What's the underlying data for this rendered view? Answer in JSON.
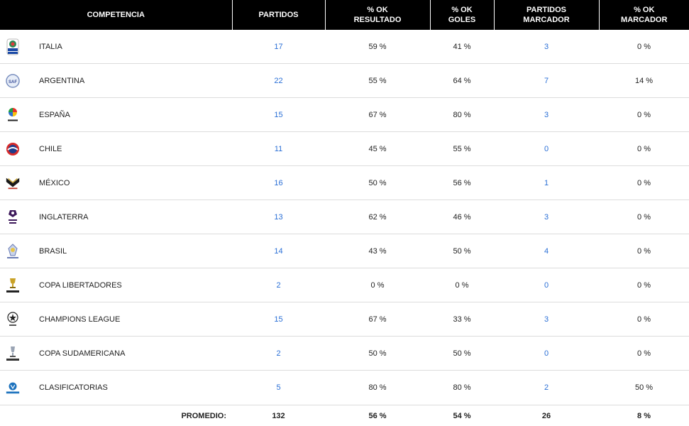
{
  "headers": {
    "competencia": "COMPETENCIA",
    "partidos": "PARTIDOS",
    "ok_resultado": [
      "% OK",
      "RESULTADO"
    ],
    "ok_goles": [
      "% OK",
      "GOLES"
    ],
    "partidos_marcador": [
      "PARTIDOS",
      "MARCADOR"
    ],
    "ok_marcador": [
      "% OK",
      "MARCADOR"
    ]
  },
  "rows": [
    {
      "name": "ITALIA",
      "icon": "serie-a-logo-icon",
      "partidos": "17",
      "resultado": "59 %",
      "goles": "41 %",
      "partidos_marcador": "3",
      "marcador": "0 %"
    },
    {
      "name": "ARGENTINA",
      "icon": "superliga-argentina-logo-icon",
      "partidos": "22",
      "resultado": "55 %",
      "goles": "64 %",
      "partidos_marcador": "7",
      "marcador": "14 %"
    },
    {
      "name": "ESPAÑA",
      "icon": "laliga-logo-icon",
      "partidos": "15",
      "resultado": "67 %",
      "goles": "80 %",
      "partidos_marcador": "3",
      "marcador": "0 %"
    },
    {
      "name": "CHILE",
      "icon": "chile-league-logo-icon",
      "partidos": "11",
      "resultado": "45 %",
      "goles": "55 %",
      "partidos_marcador": "0",
      "marcador": "0 %"
    },
    {
      "name": "MÉXICO",
      "icon": "liga-mx-logo-icon",
      "partidos": "16",
      "resultado": "50 %",
      "goles": "56 %",
      "partidos_marcador": "1",
      "marcador": "0 %"
    },
    {
      "name": "INGLATERRA",
      "icon": "premier-league-logo-icon",
      "partidos": "13",
      "resultado": "62 %",
      "goles": "46 %",
      "partidos_marcador": "3",
      "marcador": "0 %"
    },
    {
      "name": "BRASIL",
      "icon": "brasileirao-logo-icon",
      "partidos": "14",
      "resultado": "43 %",
      "goles": "50 %",
      "partidos_marcador": "4",
      "marcador": "0 %"
    },
    {
      "name": "COPA LIBERTADORES",
      "icon": "copa-libertadores-logo-icon",
      "partidos": "2",
      "resultado": "0 %",
      "goles": "0 %",
      "partidos_marcador": "0",
      "marcador": "0 %"
    },
    {
      "name": "CHAMPIONS LEAGUE",
      "icon": "champions-league-logo-icon",
      "partidos": "15",
      "resultado": "67 %",
      "goles": "33 %",
      "partidos_marcador": "3",
      "marcador": "0 %"
    },
    {
      "name": "COPA SUDAMERICANA",
      "icon": "copa-sudamericana-logo-icon",
      "partidos": "2",
      "resultado": "50 %",
      "goles": "50 %",
      "partidos_marcador": "0",
      "marcador": "0 %"
    },
    {
      "name": "CLASIFICATORIAS",
      "icon": "conmebol-logo-icon",
      "partidos": "5",
      "resultado": "80 %",
      "goles": "80 %",
      "partidos_marcador": "2",
      "marcador": "50 %"
    }
  ],
  "footer": {
    "label": "PROMEDIO:",
    "partidos": "132",
    "resultado": "56 %",
    "goles": "54 %",
    "partidos_marcador": "26",
    "marcador": "8 %"
  },
  "colors": {
    "header_bg": "#000000",
    "link": "#2a6fd6",
    "row_border": "#dcdcdc"
  }
}
